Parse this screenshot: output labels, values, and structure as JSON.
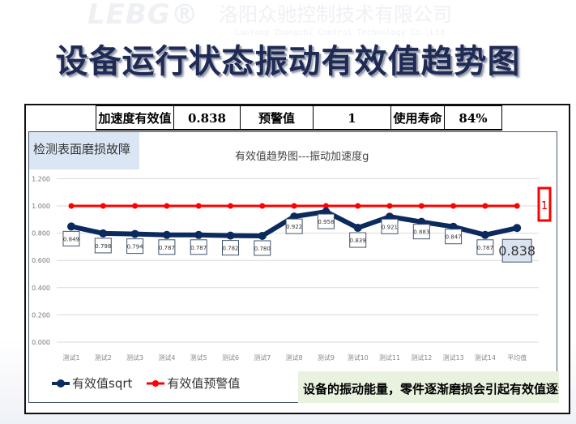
{
  "watermark": {
    "logo": "LEBG®",
    "company": "洛阳众驰控制技术有限公司",
    "company_en": "LuoYang Zhongchi Control Technology Co.,Ltd"
  },
  "title": "设备运行状态振动有效值趋势图",
  "kpi": {
    "rms_label": "加速度有效值g",
    "rms_value": "0.838",
    "warn_label": "预警值",
    "warn_value": "1",
    "life_label": "使用寿命",
    "life_value": "84%"
  },
  "fault_tag": "检测表面磨损故障",
  "note": "设备的振动能量，零件逐渐磨损会引起有效值逐渐增大",
  "chart_data": {
    "type": "line",
    "title": "有效值趋势图---振动加速度g",
    "categories": [
      "测试1",
      "测试2",
      "测试3",
      "测试4",
      "测试5",
      "测试6",
      "测试7",
      "测试8",
      "测试9",
      "测试10",
      "测试11",
      "测试12",
      "测试13",
      "测试14",
      "平均值"
    ],
    "series": [
      {
        "name": "有效值sqrt",
        "color": "#0b2a5e",
        "values": [
          0.849,
          0.798,
          0.794,
          0.787,
          0.787,
          0.782,
          0.78,
          0.922,
          0.958,
          0.839,
          0.921,
          0.883,
          0.847,
          0.787,
          0.838
        ]
      },
      {
        "name": "有效值预警值",
        "color": "#ff0000",
        "values": [
          1,
          1,
          1,
          1,
          1,
          1,
          1,
          1,
          1,
          1,
          1,
          1,
          1,
          1,
          1
        ],
        "end_label": "1"
      }
    ],
    "yticks": [
      "0.000",
      "0.200",
      "0.400",
      "0.600",
      "0.800",
      "1.000",
      "1.200"
    ],
    "ylim": [
      0,
      1.2
    ],
    "grid": true,
    "legend": "bottom-left"
  }
}
